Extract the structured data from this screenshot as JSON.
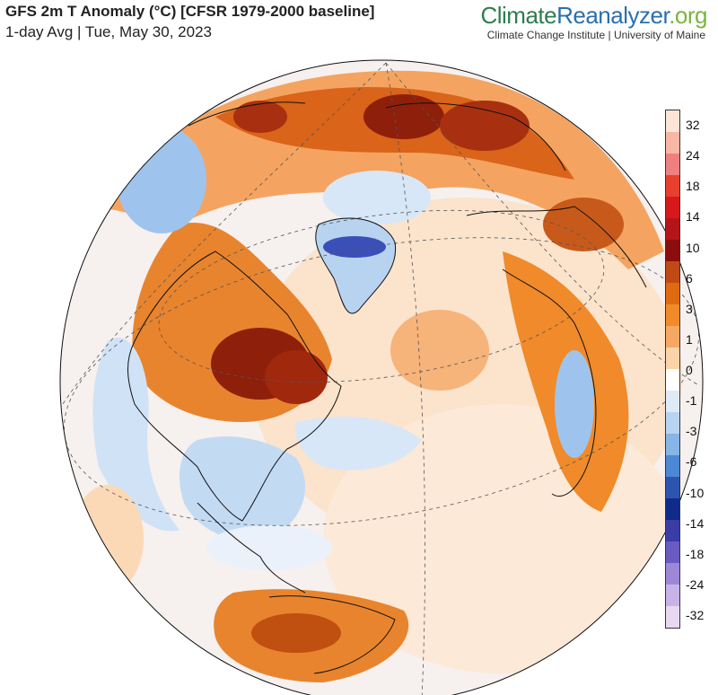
{
  "header": {
    "title": "GFS 2m T Anomaly (°C) [CFSR 1979-2000 baseline]",
    "subtitle": "1-day Avg | Tue, May 30, 2023"
  },
  "brand": {
    "name_part1": "Climate",
    "name_part2": "Reanalyzer",
    "name_part3": ".org",
    "tagline": "Climate Change Institute | University of Maine"
  },
  "legend": {
    "labels": [
      "32",
      "24",
      "18",
      "14",
      "10",
      "6",
      "3",
      "1",
      "0",
      "-1",
      "-3",
      "-6",
      "-10",
      "-14",
      "-18",
      "-24",
      "-32"
    ],
    "colors": [
      "#fce4d6",
      "#f7b7a3",
      "#f08080",
      "#e8402f",
      "#d7191c",
      "#b4141a",
      "#8b0d0d",
      "#c04a16",
      "#e06a10",
      "#f08a2a",
      "#f5a864",
      "#fad3a8",
      "#ffffff",
      "#dfeaf8",
      "#b8d3f0",
      "#86b5e6",
      "#4d88d6",
      "#2d55b0",
      "#102a8a",
      "#3a3ca8",
      "#6a5bc2",
      "#9c88d6",
      "#c7b3e6",
      "#e8d8f2"
    ]
  },
  "map": {
    "projection": "orthographic",
    "colors": {
      "ocean_neutral": "#f4f4f8",
      "warm_light": "#fbd9b6",
      "warm_mid": "#f3a35c",
      "warm_strong": "#e0731e",
      "hot": "#b8420c",
      "very_hot": "#8e1f0a",
      "cool_light": "#d8e7f7",
      "cool_mid": "#9ec4ee",
      "cold": "#3b4fb8"
    }
  }
}
